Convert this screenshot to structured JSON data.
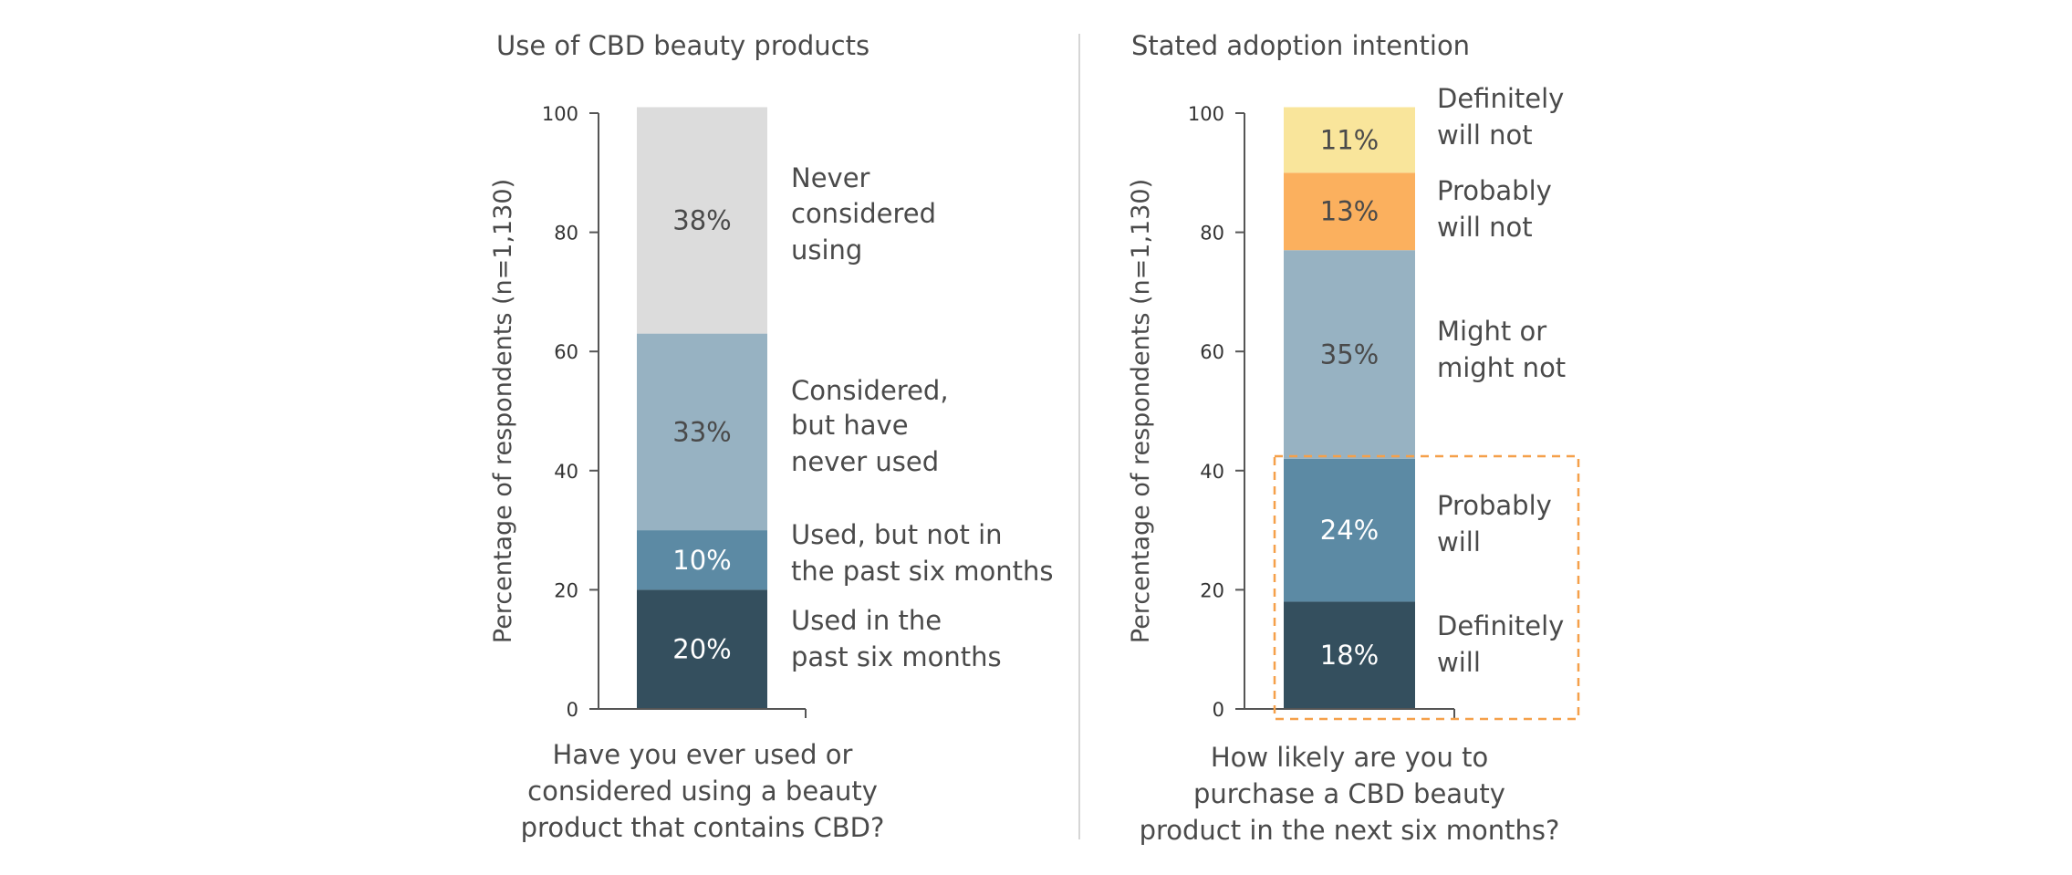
{
  "chart_data": [
    {
      "type": "bar",
      "stacked": true,
      "title": "Use of CBD beauty products",
      "ylabel": "Percentage of respondents (n=1,130)",
      "xlabel": [
        "Have you ever used or",
        "considered using a beauty",
        "product that contains CBD?"
      ],
      "ylim": [
        0,
        100
      ],
      "yticks": [
        0,
        20,
        40,
        60,
        80,
        100
      ],
      "segments": [
        {
          "label": [
            "Used in the",
            "past six months"
          ],
          "value": 20,
          "value_label": "20%",
          "color": "#344f5e",
          "text_color": "#ffffff"
        },
        {
          "label": [
            "Used, but not in",
            "the past six months"
          ],
          "value": 10,
          "value_label": "10%",
          "color": "#5c8aa4",
          "text_color": "#ffffff"
        },
        {
          "label": [
            "Considered,",
            "but have",
            "never used"
          ],
          "value": 33,
          "value_label": "33%",
          "color": "#97b2c2",
          "text_color": "#4a4a4a"
        },
        {
          "label": [
            "Never",
            "considered",
            "using"
          ],
          "value": 38,
          "value_label": "38%",
          "color": "#dcdcdc",
          "text_color": "#4a4a4a"
        }
      ]
    },
    {
      "type": "bar",
      "stacked": true,
      "title": "Stated adoption intention",
      "ylabel": "Percentage of respondents (n=1,130)",
      "xlabel": [
        "How likely are you to",
        "purchase a CBD beauty",
        "product in the next six months?"
      ],
      "ylim": [
        0,
        100
      ],
      "yticks": [
        0,
        20,
        40,
        60,
        80,
        100
      ],
      "highlight_segments": [
        0,
        1
      ],
      "highlight_color": "#f5a04a",
      "segments": [
        {
          "label": [
            "Definitely",
            "will"
          ],
          "value": 18,
          "value_label": "18%",
          "color": "#344f5e",
          "text_color": "#ffffff"
        },
        {
          "label": [
            "Probably",
            "will"
          ],
          "value": 24,
          "value_label": "24%",
          "color": "#5c8aa4",
          "text_color": "#ffffff"
        },
        {
          "label": [
            "Might or",
            "might not"
          ],
          "value": 35,
          "value_label": "35%",
          "color": "#97b2c2",
          "text_color": "#4a4a4a"
        },
        {
          "label": [
            "Probably",
            "will not"
          ],
          "value": 13,
          "value_label": "13%",
          "color": "#fbb05e",
          "text_color": "#4a4a4a"
        },
        {
          "label": [
            "Definitely",
            "will not"
          ],
          "value": 11,
          "value_label": "11%",
          "color": "#f9e59b",
          "text_color": "#4a4a4a"
        }
      ]
    }
  ]
}
